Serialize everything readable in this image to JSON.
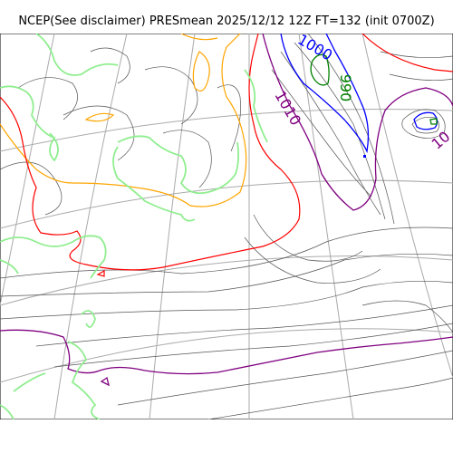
{
  "map": {
    "title": "NCEP(See disclaimer) PRESmean 2025/12/12 12Z FT=132 (init 0700Z)",
    "contour_labels": {
      "label_1000": "1000",
      "label_990": "990",
      "label_1010": "1010",
      "label_right": "10"
    },
    "colors": {
      "coastline": "#90ee90",
      "graticule": "#aaaaaa",
      "isobar_minor": "#555555",
      "isobar_1020": "#ffa500",
      "isobar_1010": "#ff0000",
      "isobar_1000": "#800080",
      "isobar_990": "#0000ff",
      "isobar_980": "#008000"
    }
  }
}
